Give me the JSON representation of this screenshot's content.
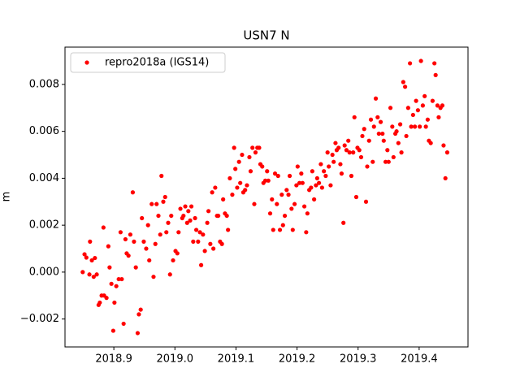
{
  "chart_data": {
    "type": "scatter",
    "title": "USN7 N",
    "y_label": "m",
    "legend": "upper left",
    "grid": false,
    "xlim": [
      2018.82,
      2019.48
    ],
    "ylim": [
      -0.00319,
      0.00959
    ],
    "xticks": [
      {
        "value": 2018.9,
        "label": "2018.9"
      },
      {
        "value": 2019.0,
        "label": "2019.0"
      },
      {
        "value": 2019.1,
        "label": "2019.1"
      },
      {
        "value": 2019.2,
        "label": "2019.2"
      },
      {
        "value": 2019.3,
        "label": "2019.3"
      },
      {
        "value": 2019.4,
        "label": "2019.4"
      }
    ],
    "yticks": [
      {
        "value": -0.002,
        "label": "−0.002"
      },
      {
        "value": 0,
        "label": "0.000"
      },
      {
        "value": 0.002,
        "label": "0.002"
      },
      {
        "value": 0.004,
        "label": "0.004"
      },
      {
        "value": 0.006,
        "label": "0.006"
      },
      {
        "value": 0.008,
        "label": "0.008"
      }
    ],
    "x": [
      2018.849,
      2018.852,
      2018.855,
      2018.86,
      2018.861,
      2018.864,
      2018.867,
      2018.869,
      2018.872,
      2018.875,
      2018.877,
      2018.88,
      2018.883,
      2018.884,
      2018.888,
      2018.891,
      2018.893,
      2018.896,
      2018.899,
      2018.901,
      2018.904,
      2018.908,
      2018.911,
      2018.913,
      2018.916,
      2018.919,
      2018.921,
      2018.924,
      2018.927,
      2018.931,
      2018.933,
      2018.936,
      2018.939,
      2018.941,
      2018.944,
      2018.946,
      2018.949,
      2018.953,
      2018.956,
      2018.958,
      2018.962,
      2018.965,
      2018.968,
      2018.97,
      2018.973,
      2018.976,
      2018.978,
      2018.981,
      2018.984,
      2018.986,
      2018.989,
      2018.992,
      2018.994,
      2018.997,
      2019.001,
      2019.004,
      2019.006,
      2019.009,
      2019.012,
      2019.014,
      2019.017,
      2019.02,
      2019.022,
      2019.025,
      2019.027,
      2019.03,
      2019.033,
      2019.035,
      2019.038,
      2019.041,
      2019.043,
      2019.046,
      2019.049,
      2019.053,
      2019.055,
      2019.058,
      2019.061,
      2019.063,
      2019.066,
      2019.069,
      2019.071,
      2019.074,
      2019.077,
      2019.079,
      2019.082,
      2019.085,
      2019.087,
      2019.09,
      2019.094,
      2019.097,
      2019.099,
      2019.102,
      2019.105,
      2019.107,
      2019.11,
      2019.112,
      2019.115,
      2019.118,
      2019.122,
      2019.124,
      2019.127,
      2019.13,
      2019.132,
      2019.135,
      2019.138,
      2019.14,
      2019.143,
      2019.145,
      2019.148,
      2019.151,
      2019.153,
      2019.156,
      2019.159,
      2019.161,
      2019.164,
      2019.167,
      2019.169,
      2019.172,
      2019.175,
      2019.177,
      2019.18,
      2019.183,
      2019.186,
      2019.188,
      2019.191,
      2019.193,
      2019.196,
      2019.199,
      2019.201,
      2019.204,
      2019.207,
      2019.209,
      2019.212,
      2019.215,
      2019.217,
      2019.22,
      2019.223,
      2019.225,
      2019.228,
      2019.231,
      2019.233,
      2019.236,
      2019.239,
      2019.241,
      2019.244,
      2019.247,
      2019.25,
      2019.252,
      2019.255,
      2019.258,
      2019.26,
      2019.263,
      2019.265,
      2019.268,
      2019.271,
      2019.273,
      2019.276,
      2019.278,
      2019.281,
      2019.284,
      2019.286,
      2019.289,
      2019.292,
      2019.294,
      2019.297,
      2019.299,
      2019.302,
      2019.305,
      2019.307,
      2019.31,
      2019.313,
      2019.315,
      2019.318,
      2019.321,
      2019.324,
      2019.326,
      2019.329,
      2019.332,
      2019.334,
      2019.337,
      2019.34,
      2019.342,
      2019.345,
      2019.348,
      2019.35,
      2019.353,
      2019.356,
      2019.358,
      2019.361,
      2019.363,
      2019.366,
      2019.369,
      2019.371,
      2019.374,
      2019.377,
      2019.379,
      2019.382,
      2019.385,
      2019.387,
      2019.39,
      2019.393,
      2019.395,
      2019.398,
      2019.401,
      2019.403,
      2019.406,
      2019.409,
      2019.411,
      2019.414,
      2019.416,
      2019.419,
      2019.422,
      2019.425,
      2019.427,
      2019.43,
      2019.432,
      2019.435,
      2019.438,
      2019.44,
      2019.443,
      2019.446
    ],
    "series": [
      {
        "name": "repro2018a (IGS14)",
        "color": "#ff0000",
        "values": [
          0.0,
          0.00076,
          0.00062,
          -0.0001,
          0.0013,
          0.0005,
          -0.0002,
          0.0006,
          -0.0001,
          -0.0014,
          -0.0013,
          -0.001,
          0.0019,
          -0.001,
          -0.0011,
          0.0011,
          0.0002,
          -0.0005,
          -0.0025,
          -0.0013,
          -0.0006,
          -0.0003,
          0.0017,
          -0.0003,
          -0.0022,
          0.0014,
          0.0008,
          0.0007,
          0.0016,
          0.0034,
          0.0013,
          0.0002,
          -0.0026,
          -0.0018,
          -0.0016,
          0.0023,
          0.0013,
          0.001,
          0.002,
          0.0005,
          0.0029,
          -0.0002,
          0.0012,
          0.0029,
          0.0024,
          0.0016,
          0.0041,
          0.003,
          0.0032,
          0.0017,
          0.0021,
          -0.0001,
          0.0024,
          0.0005,
          0.0009,
          0.0008,
          0.0017,
          0.0027,
          0.0023,
          0.0024,
          0.0028,
          0.0021,
          0.0026,
          0.0022,
          0.0028,
          0.0013,
          0.0023,
          0.0018,
          0.0013,
          0.0017,
          0.0003,
          0.0016,
          0.0009,
          0.0021,
          0.0026,
          0.0012,
          0.0034,
          0.001,
          0.0036,
          0.0024,
          0.0024,
          0.0013,
          0.0012,
          0.0031,
          0.0025,
          0.0024,
          0.0018,
          0.004,
          0.0033,
          0.0053,
          0.0044,
          0.0036,
          0.0047,
          0.0038,
          0.005,
          0.0034,
          0.0035,
          0.0037,
          0.0049,
          0.0043,
          0.0053,
          0.0029,
          0.0051,
          0.0053,
          0.0053,
          0.0046,
          0.0045,
          0.0038,
          0.0039,
          0.0043,
          0.0039,
          0.0025,
          0.0031,
          0.0018,
          0.0042,
          0.0029,
          0.0041,
          0.0018,
          0.0033,
          0.002,
          0.0024,
          0.0035,
          0.0033,
          0.0041,
          0.0027,
          0.0018,
          0.0029,
          0.0037,
          0.0045,
          0.0038,
          0.0042,
          0.0038,
          0.0028,
          0.0017,
          0.0025,
          0.0035,
          0.0036,
          0.0043,
          0.0031,
          0.0037,
          0.004,
          0.0038,
          0.0046,
          0.0036,
          0.0043,
          0.0041,
          0.0051,
          0.0045,
          0.0037,
          0.005,
          0.0047,
          0.0055,
          0.0052,
          0.0053,
          0.0046,
          0.0042,
          0.0021,
          0.0054,
          0.0052,
          0.0056,
          0.0051,
          0.0041,
          0.0051,
          0.0066,
          0.0032,
          0.0053,
          0.0052,
          0.0049,
          0.0058,
          0.0061,
          0.003,
          0.0045,
          0.0056,
          0.0065,
          0.0047,
          0.0062,
          0.0074,
          0.0066,
          0.0059,
          0.0064,
          0.0059,
          0.0056,
          0.0047,
          0.0052,
          0.0047,
          0.007,
          0.0062,
          0.0049,
          0.0059,
          0.006,
          0.0055,
          0.0063,
          0.0051,
          0.0081,
          0.0079,
          0.0058,
          0.007,
          0.0089,
          0.0062,
          0.0067,
          0.0062,
          0.0073,
          0.0069,
          0.0062,
          0.009,
          0.0071,
          0.0075,
          0.0062,
          0.0065,
          0.0056,
          0.0055,
          0.0073,
          0.0089,
          0.0084,
          0.0071,
          0.0066,
          0.007,
          0.0071,
          0.0054,
          0.004,
          0.0051
        ]
      }
    ]
  }
}
